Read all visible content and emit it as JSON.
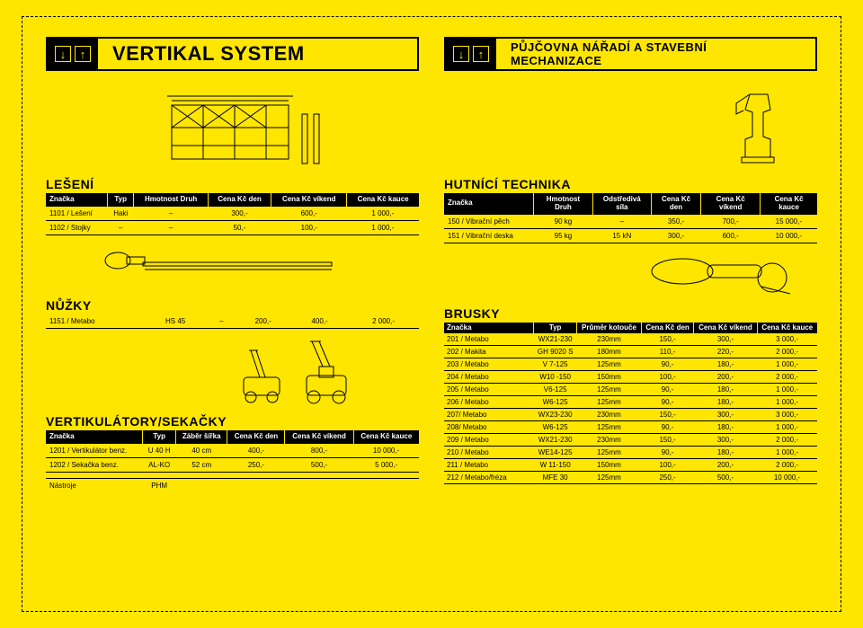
{
  "banners": {
    "left": "VERTIKAL SYSTEM",
    "right": "PŮJČOVNA NÁŘADÍ A STAVEBNÍ MECHANIZACE"
  },
  "leseni": {
    "title": "LEŠENÍ",
    "headers": [
      "Značka",
      "Typ",
      "Hmotnost\nDruh",
      "Cena Kč\nden",
      "Cena Kč\nvíkend",
      "Cena Kč\nkauce"
    ],
    "rows": [
      [
        "1101 / Lešení",
        "Haki",
        "–",
        "300,-",
        "600,-",
        "1 000,-"
      ],
      [
        "1102 / Stojky",
        "–",
        "–",
        "50,-",
        "100,-",
        "1 000,-"
      ]
    ]
  },
  "nuzky": {
    "title": "NŮŽKY",
    "row": [
      "1151 / Metabo",
      "HS 45",
      "–",
      "200,-",
      "400,-",
      "2 000,-"
    ]
  },
  "vertik": {
    "title": "VERTIKULÁTORY/SEKAČKY",
    "headers": [
      "Značka",
      "Typ",
      "Záběr\nšířka",
      "Cena Kč\nden",
      "Cena Kč\nvíkend",
      "Cena Kč\nkauce"
    ],
    "rows": [
      [
        "1201 / Vertikulátor benz.",
        "U 40 H",
        "40 cm",
        "400,-",
        "800,-",
        "10 000,-"
      ],
      [
        "1202 / Sekačka benz.",
        "AL-KO",
        "52 cm",
        "250,-",
        "500,-",
        "5 000,-"
      ],
      [
        "",
        "",
        "",
        "",
        "",
        ""
      ],
      [
        "Nástroje",
        "PHM",
        "",
        "",
        "",
        ""
      ]
    ]
  },
  "hutnici": {
    "title": "HUTNÍCÍ TECHNIKA",
    "headers": [
      "Značka",
      "Hmotnost\nDruh",
      "Odstředivá\nsíla",
      "Cena Kč\nden",
      "Cena Kč\nvíkend",
      "Cena Kč\nkauce"
    ],
    "rows": [
      [
        "150 / Vibrační pěch",
        "90 kg",
        "–",
        "350,-",
        "700,-",
        "15 000,-"
      ],
      [
        "151 / Vibrační deska",
        "95 kg",
        "15 kN",
        "300,-",
        "600,-",
        "10 000,-"
      ]
    ]
  },
  "brusky": {
    "title": "BRUSKY",
    "headers": [
      "Značka",
      "Typ",
      "Průměr\nkotouče",
      "Cena Kč\nden",
      "Cena Kč\nvíkend",
      "Cena Kč\nkauce"
    ],
    "rows": [
      [
        "201 / Metabo",
        "WX21-230",
        "230mm",
        "150,-",
        "300,-",
        "3 000,-"
      ],
      [
        "202 / Makita",
        "GH 9020 S",
        "180mm",
        "110,-",
        "220,-",
        "2 000,-"
      ],
      [
        "203 / Metabo",
        "V 7-125",
        "125mm",
        "90,-",
        "180,-",
        "1 000,-"
      ],
      [
        "204 / Metabo",
        "W10 -150",
        "150mm",
        "100,-",
        "200,-",
        "2 000,-"
      ],
      [
        "205 / Metabo",
        "V6-125",
        "125mm",
        "90,-",
        "180,-",
        "1 000,-"
      ],
      [
        "206 / Metabo",
        "W6-125",
        "125mm",
        "90,-",
        "180,-",
        "1 000,-"
      ],
      [
        "207/ Metabo",
        "WX23-230",
        "230mm",
        "150,-",
        "300,-",
        "3 000,-"
      ],
      [
        "208/ Metabo",
        "W6-125",
        "125mm",
        "90,-",
        "180,-",
        "1 000,-"
      ],
      [
        "209 / Metabo",
        "WX21-230",
        "230mm",
        "150,-",
        "300,-",
        "2 000,-"
      ],
      [
        "210 / Metabo",
        "WE14-125",
        "125mm",
        "90,-",
        "180,-",
        "1 000,-"
      ],
      [
        "211 / Metabo",
        "W 11-150",
        "150mm",
        "100,-",
        "200,-",
        "2 000,-"
      ],
      [
        "212 / Metabo/fréza",
        "MFE 30",
        "125mm",
        "250,-",
        "500,-",
        "10 000,-"
      ]
    ]
  }
}
